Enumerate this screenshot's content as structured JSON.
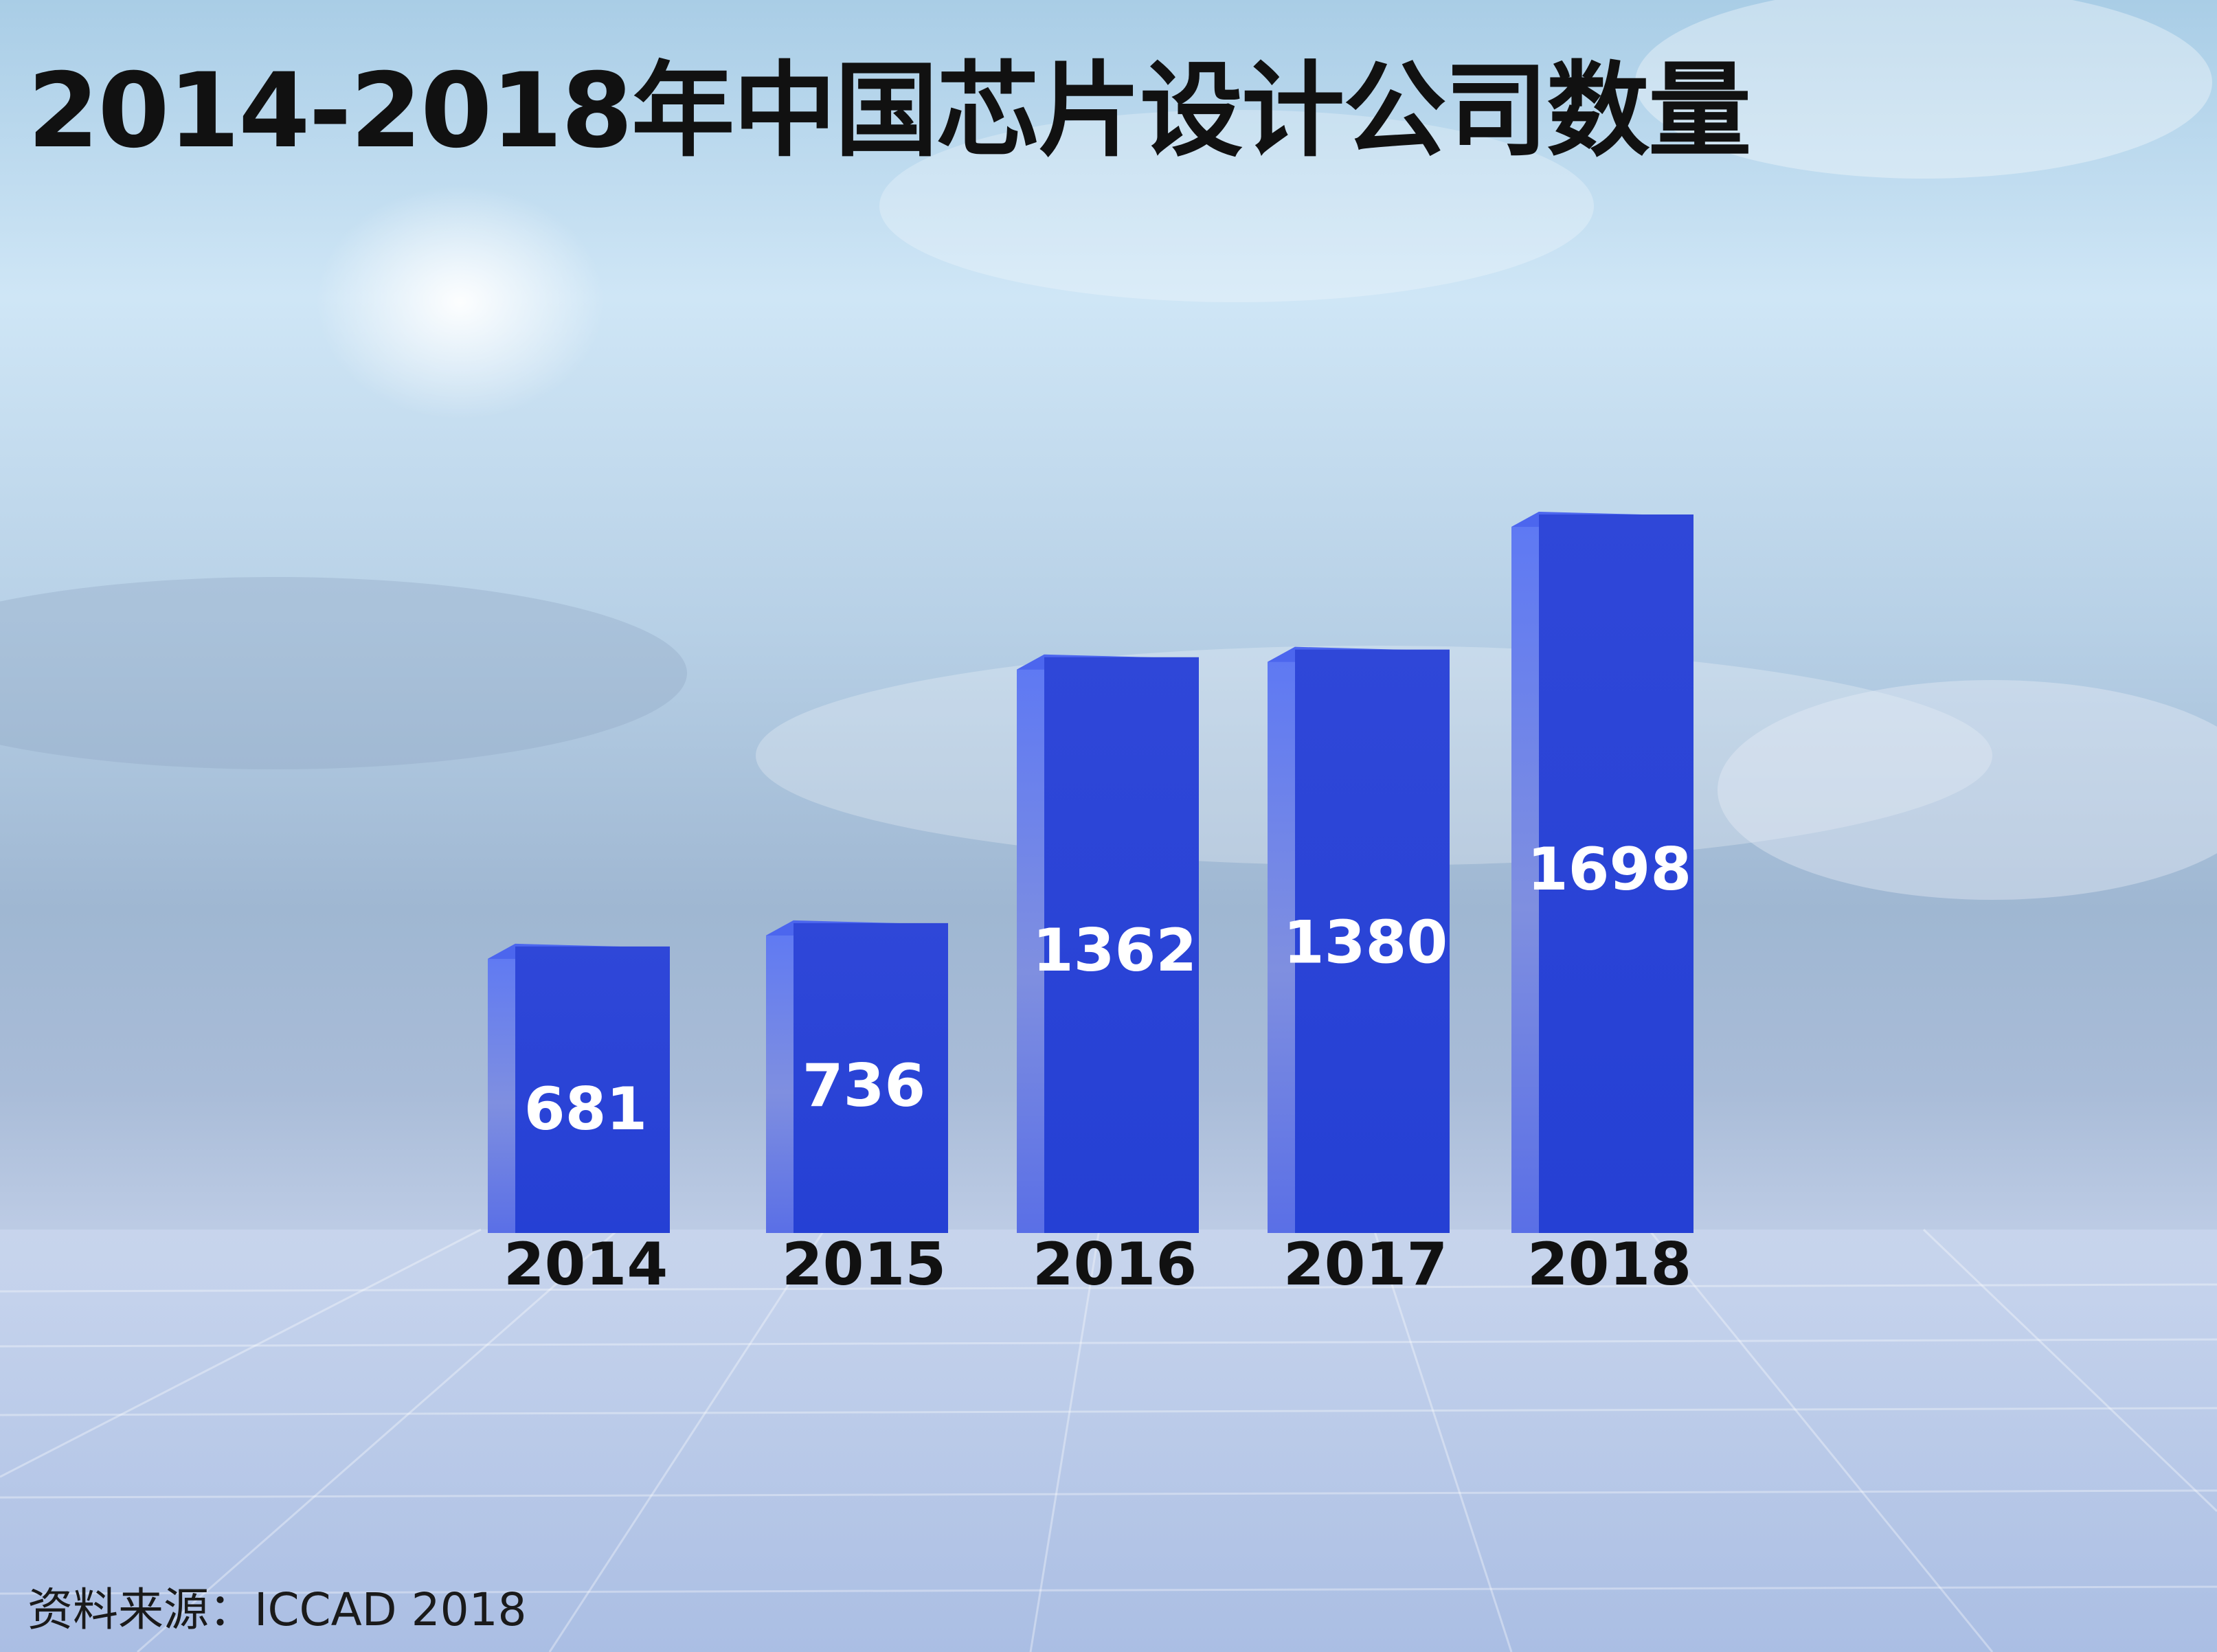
{
  "title": "2014-2018年中国芯片设计公司数量",
  "source": "资料来源：ICCAD 2018",
  "colors": {
    "bar_front": "#2d46d6",
    "bar_side": "#5a73f2",
    "bar_top": "#4c66ee",
    "value_text": "#ffffff",
    "category_text": "#111111"
  },
  "chart_data": {
    "type": "bar",
    "categories": [
      "2014",
      "2015",
      "2016",
      "2017",
      "2018"
    ],
    "values": [
      681,
      736,
      1362,
      1380,
      1698
    ],
    "data_labels": [
      "681",
      "736",
      "1362",
      "1380",
      "1698"
    ],
    "ylim": [
      0,
      1800
    ],
    "grid": false,
    "legend": "none"
  }
}
